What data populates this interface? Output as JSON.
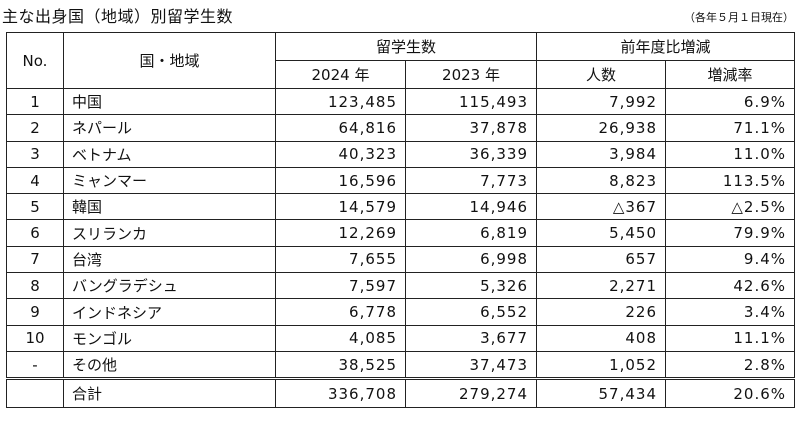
{
  "title": "主な出身国（地域）別留学生数",
  "note": "（各年５月１日現在）",
  "headers": {
    "no": "No.",
    "country": "国・地域",
    "students": "留学生数",
    "y2024": "2024 年",
    "y2023": "2023 年",
    "change": "前年度比増減",
    "count": "人数",
    "rate": "増減率"
  },
  "rows": [
    {
      "no": "1",
      "country": "中国",
      "y2024": "123,485",
      "y2023": "115,493",
      "count": "7,992",
      "rate": "6.9%"
    },
    {
      "no": "2",
      "country": "ネパール",
      "y2024": "64,816",
      "y2023": "37,878",
      "count": "26,938",
      "rate": "71.1%"
    },
    {
      "no": "3",
      "country": "ベトナム",
      "y2024": "40,323",
      "y2023": "36,339",
      "count": "3,984",
      "rate": "11.0%"
    },
    {
      "no": "4",
      "country": "ミャンマー",
      "y2024": "16,596",
      "y2023": "7,773",
      "count": "8,823",
      "rate": "113.5%"
    },
    {
      "no": "5",
      "country": "韓国",
      "y2024": "14,579",
      "y2023": "14,946",
      "count": "△367",
      "rate": "△2.5%"
    },
    {
      "no": "6",
      "country": "スリランカ",
      "y2024": "12,269",
      "y2023": "6,819",
      "count": "5,450",
      "rate": "79.9%"
    },
    {
      "no": "7",
      "country": "台湾",
      "y2024": "7,655",
      "y2023": "6,998",
      "count": "657",
      "rate": "9.4%"
    },
    {
      "no": "8",
      "country": "バングラデシュ",
      "y2024": "7,597",
      "y2023": "5,326",
      "count": "2,271",
      "rate": "42.6%"
    },
    {
      "no": "9",
      "country": "インドネシア",
      "y2024": "6,778",
      "y2023": "6,552",
      "count": "226",
      "rate": "3.4%"
    },
    {
      "no": "10",
      "country": "モンゴル",
      "y2024": "4,085",
      "y2023": "3,677",
      "count": "408",
      "rate": "11.1%"
    },
    {
      "no": "-",
      "country": "その他",
      "y2024": "38,525",
      "y2023": "37,473",
      "count": "1,052",
      "rate": "2.8%"
    }
  ],
  "total": {
    "no": "",
    "country": "合計",
    "y2024": "336,708",
    "y2023": "279,274",
    "count": "57,434",
    "rate": "20.6%"
  }
}
